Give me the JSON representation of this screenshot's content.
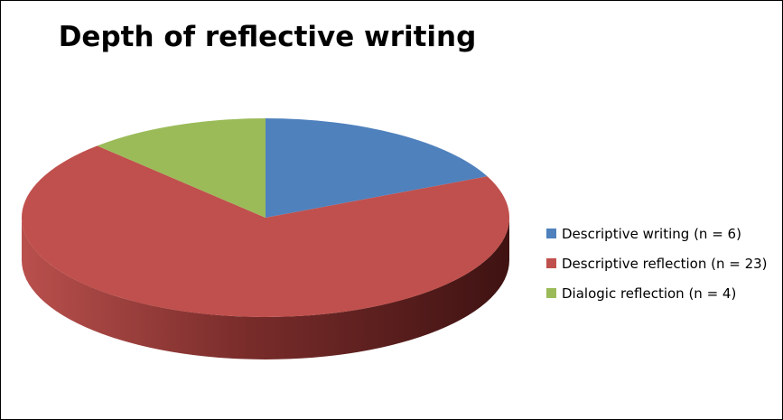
{
  "chart_data": {
    "type": "pie",
    "title": "Depth of reflective writing",
    "categories": [
      "Descriptive writing",
      "Descriptive reflection",
      "Dialogic reflection"
    ],
    "values": [
      6,
      23,
      4
    ],
    "colors": [
      "#4f81bd",
      "#c0504d",
      "#9bbb59"
    ],
    "legend": [
      {
        "label": "Descriptive writing (n = 6)",
        "color": "#4f81bd"
      },
      {
        "label": "Descriptive reflection (n = 23)",
        "color": "#c0504d"
      },
      {
        "label": "Dialogic reflection (n = 4)",
        "color": "#9bbb59"
      }
    ],
    "legend_position": "right",
    "style": "3d"
  }
}
